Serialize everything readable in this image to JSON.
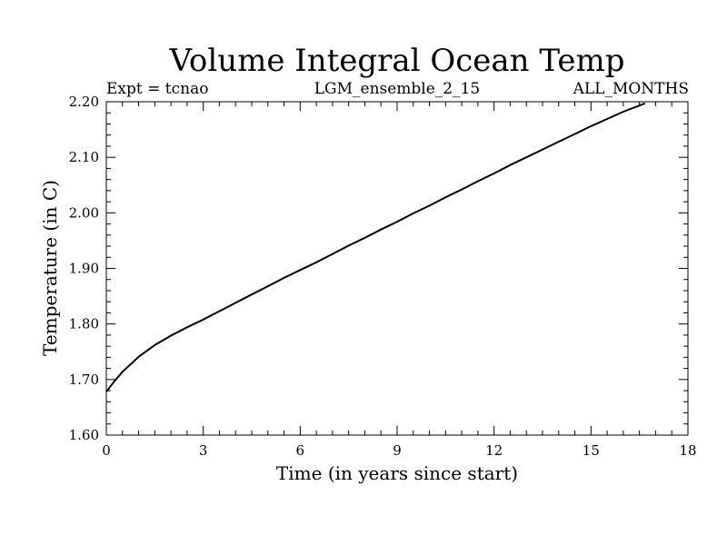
{
  "chart_data": {
    "type": "line",
    "title": "Volume Integral Ocean Temp",
    "subtitle_left": "Expt = tcnao",
    "subtitle_center": "LGM_ensemble_2_15",
    "subtitle_right": "ALL_MONTHS",
    "xlabel": "Time (in years since start)",
    "ylabel": "Temperature (in C)",
    "xlim": [
      0,
      18
    ],
    "ylim": [
      1.6,
      2.2
    ],
    "xticks": [
      0,
      3,
      6,
      9,
      12,
      15,
      18
    ],
    "xtick_labels": [
      "0",
      "3",
      "6",
      "9",
      "12",
      "15",
      "18"
    ],
    "yticks": [
      1.6,
      1.7,
      1.8,
      1.9,
      2.0,
      2.1,
      2.2
    ],
    "ytick_labels": [
      "1.60",
      "1.70",
      "1.80",
      "1.90",
      "2.00",
      "2.10",
      "2.20"
    ],
    "x_minor_step": 0.5,
    "y_minor_step": 0.02,
    "grid": false,
    "series": [
      {
        "name": "Volume Integral Ocean Temp",
        "x": [
          0,
          0.25,
          0.5,
          1.0,
          1.5,
          2.0,
          2.5,
          3.0,
          3.5,
          4.0,
          4.5,
          5.0,
          5.5,
          6.0,
          6.5,
          7.0,
          7.5,
          8.0,
          8.5,
          9.0,
          9.5,
          10.0,
          10.5,
          11.0,
          11.5,
          12.0,
          12.5,
          13.0,
          13.5,
          14.0,
          14.5,
          15.0,
          15.5,
          16.0,
          16.67
        ],
        "values": [
          1.678,
          1.697,
          1.714,
          1.741,
          1.762,
          1.779,
          1.794,
          1.808,
          1.823,
          1.838,
          1.853,
          1.868,
          1.883,
          1.897,
          1.911,
          1.926,
          1.941,
          1.955,
          1.97,
          1.984,
          1.999,
          2.013,
          2.028,
          2.042,
          2.057,
          2.071,
          2.086,
          2.1,
          2.114,
          2.128,
          2.142,
          2.156,
          2.169,
          2.182,
          2.197
        ]
      }
    ]
  }
}
